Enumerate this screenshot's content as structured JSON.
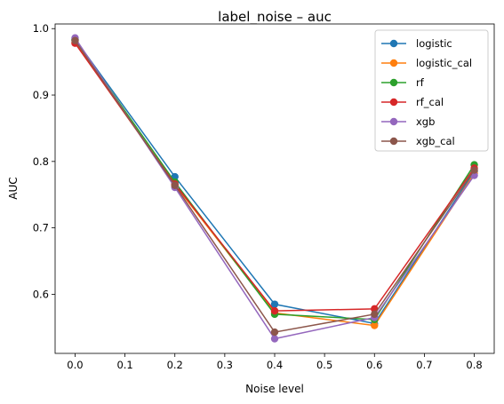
{
  "chart_data": {
    "type": "line",
    "title": "label_noise – auc",
    "xlabel": "Noise level",
    "ylabel": "AUC",
    "x": [
      0.0,
      0.2,
      0.4,
      0.6,
      0.8
    ],
    "xlim": [
      -0.04,
      0.84
    ],
    "ylim": [
      0.511,
      1.007
    ],
    "xticks": [
      "0.0",
      "0.1",
      "0.2",
      "0.3",
      "0.4",
      "0.5",
      "0.6",
      "0.7",
      "0.8"
    ],
    "yticks": [
      "0.6",
      "0.7",
      "0.8",
      "0.9",
      "1.0"
    ],
    "grid": false,
    "legend_position": "top-right",
    "series": [
      {
        "name": "logistic",
        "color": "#1f77b4",
        "values": [
          0.984,
          0.777,
          0.585,
          0.556,
          0.785
        ]
      },
      {
        "name": "logistic_cal",
        "color": "#ff7f0e",
        "values": [
          0.979,
          0.765,
          0.572,
          0.553,
          0.782
        ]
      },
      {
        "name": "rf",
        "color": "#2ca02c",
        "values": [
          0.983,
          0.769,
          0.57,
          0.562,
          0.795
        ]
      },
      {
        "name": "rf_cal",
        "color": "#d62728",
        "values": [
          0.978,
          0.766,
          0.575,
          0.578,
          0.79
        ]
      },
      {
        "name": "xgb",
        "color": "#9467bd",
        "values": [
          0.986,
          0.761,
          0.533,
          0.565,
          0.779
        ]
      },
      {
        "name": "xgb_cal",
        "color": "#8c564b",
        "values": [
          0.982,
          0.764,
          0.543,
          0.57,
          0.787
        ]
      }
    ]
  }
}
